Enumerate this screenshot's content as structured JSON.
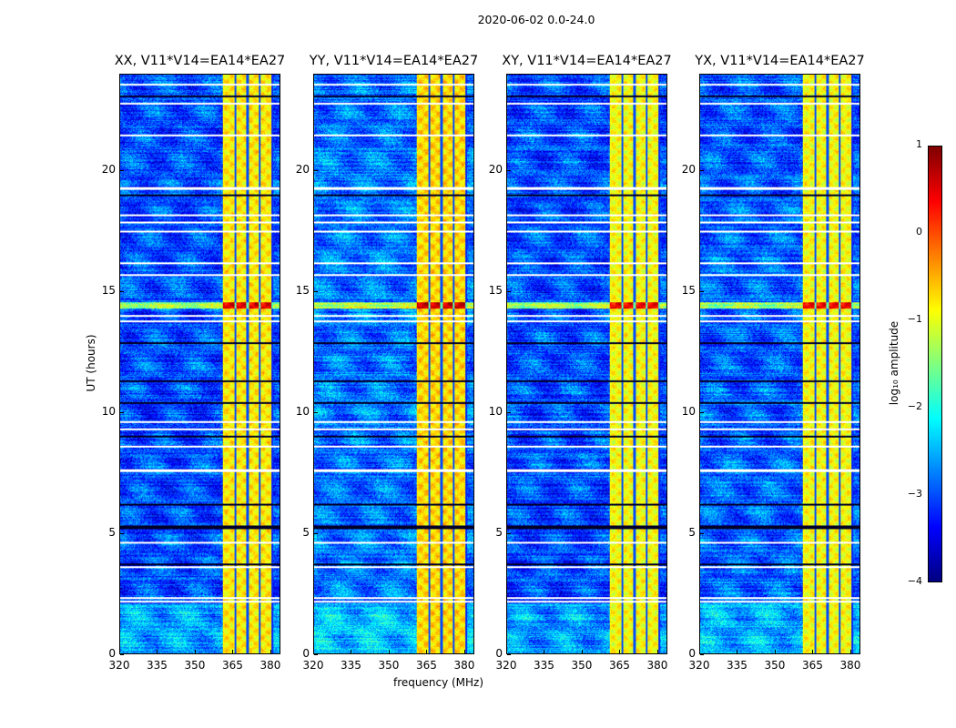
{
  "chart_data": {
    "type": "heatmap",
    "title": "2020-06-02 0.0-24.0",
    "xlabel": "frequency (MHz)",
    "ylabel": "UT (hours)",
    "xlim": [
      320,
      384
    ],
    "ylim": [
      0,
      24
    ],
    "xticks": [
      "320",
      "335",
      "350",
      "365",
      "380"
    ],
    "xtick_values": [
      320,
      335,
      350,
      365,
      380
    ],
    "yticks": [
      "0",
      "5",
      "10",
      "15",
      "20"
    ],
    "ytick_values": [
      0,
      5,
      10,
      15,
      20
    ],
    "panels": [
      {
        "title": "XX, V11*V14=EA14*EA27",
        "background_level": -3.0,
        "band_level": -0.8
      },
      {
        "title": "YY, V11*V14=EA14*EA27",
        "background_level": -2.8,
        "band_level": -0.7
      },
      {
        "title": "XY, V11*V14=EA14*EA27",
        "background_level": -3.0,
        "band_level": -0.9
      },
      {
        "title": "YX, V11*V14=EA14*EA27",
        "background_level": -2.9,
        "band_level": -0.9
      }
    ],
    "strong_band_mhz": [
      361,
      381
    ],
    "flagged_hours_white": [
      23.6,
      22.8,
      21.5,
      19.3,
      18.2,
      17.9,
      17.5,
      16.2,
      15.7,
      14.0,
      13.8,
      9.6,
      9.3,
      8.6,
      7.6,
      4.6,
      3.6,
      2.3,
      2.15
    ],
    "dark_hours": [
      23.1,
      19.0,
      12.9,
      11.3,
      10.4,
      9.0,
      6.2,
      5.3,
      5.2,
      3.7
    ],
    "hot_hours": [
      14.45
    ],
    "colorbar": {
      "label": "log₁₀ amplitude",
      "min": -4,
      "max": 1,
      "ticks": [
        "1",
        "0",
        "−1",
        "−2",
        "−3",
        "−4"
      ],
      "tick_values": [
        1,
        0,
        -1,
        -2,
        -3,
        -4
      ],
      "colormap": "jet"
    }
  }
}
